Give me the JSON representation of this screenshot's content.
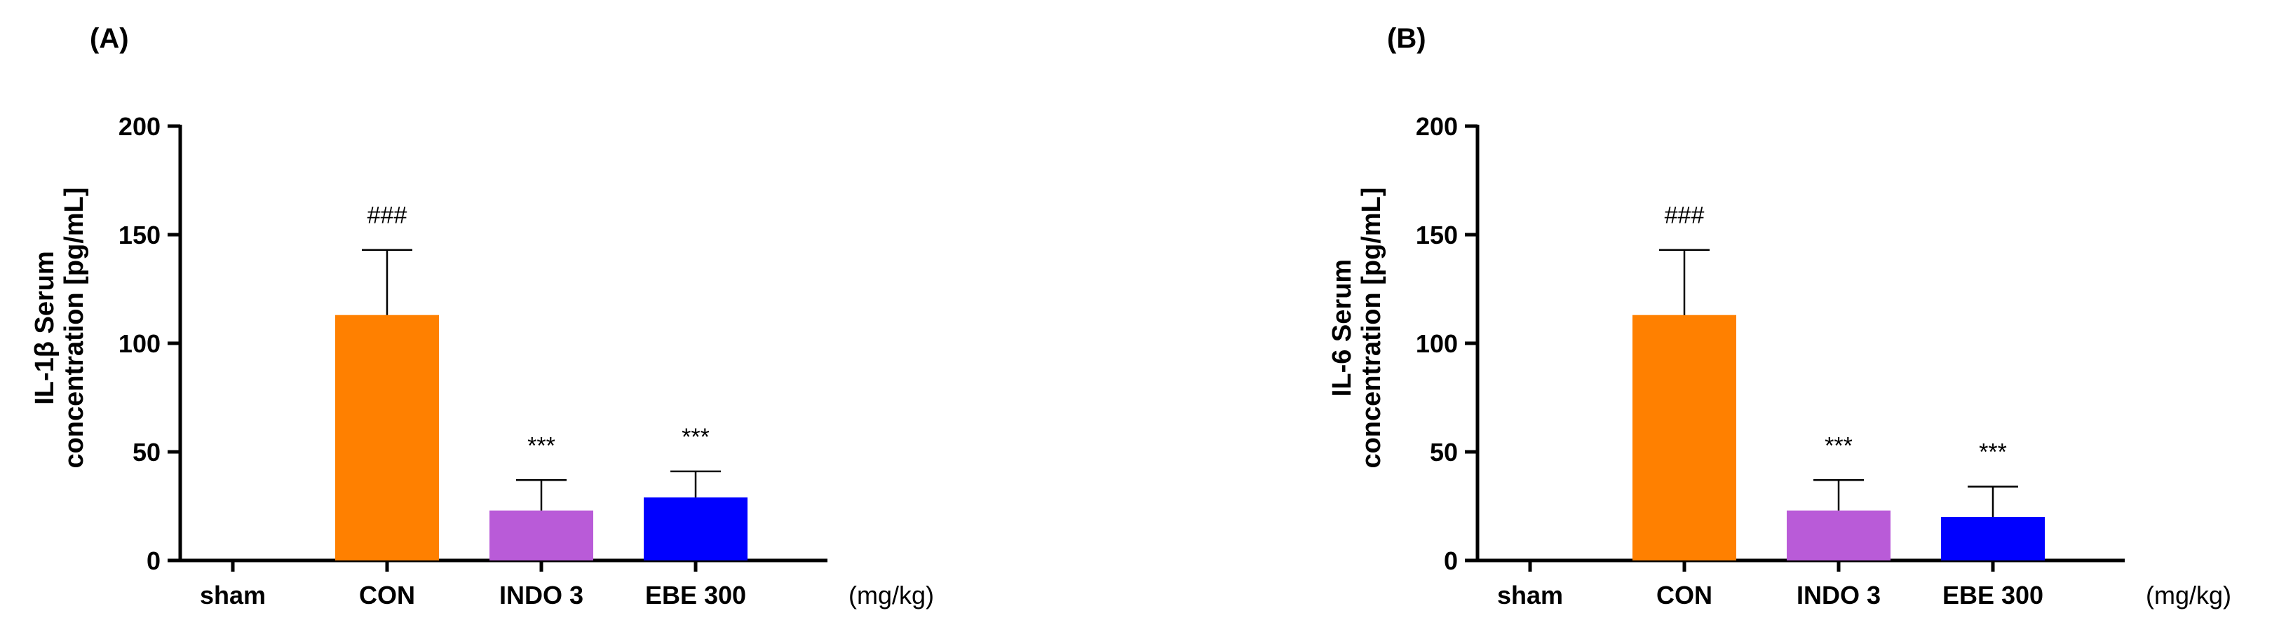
{
  "chart_data": [
    {
      "type": "bar",
      "panel_label": "(A)",
      "ylabel_line1": "IL-1β Serum",
      "ylabel_line2": "concentration [pg/mL]",
      "x_unit": "(mg/kg)",
      "categories": [
        "sham",
        "CON",
        "INDO 3",
        "EBE 300"
      ],
      "values": [
        0,
        113,
        23,
        29
      ],
      "errors": [
        0,
        30,
        14,
        12
      ],
      "annotations": [
        "",
        "###",
        "***",
        "***"
      ],
      "colors": [
        "#ffffff",
        "#ff8000",
        "#b95bd8",
        "#0000ff"
      ],
      "ylim": [
        0,
        200
      ],
      "yticks": [
        "0",
        "50",
        "100",
        "150",
        "200"
      ]
    },
    {
      "type": "bar",
      "panel_label": "(B)",
      "ylabel_line1": "IL-6 Serum",
      "ylabel_line2": "concentration [pg/mL]",
      "x_unit": "(mg/kg)",
      "categories": [
        "sham",
        "CON",
        "INDO 3",
        "EBE 300"
      ],
      "values": [
        0,
        113,
        23,
        20
      ],
      "errors": [
        0,
        30,
        14,
        14
      ],
      "annotations": [
        "",
        "###",
        "***",
        "***"
      ],
      "colors": [
        "#ffffff",
        "#ff8000",
        "#b95bd8",
        "#0000ff"
      ],
      "ylim": [
        0,
        200
      ],
      "yticks": [
        "0",
        "50",
        "100",
        "150",
        "200"
      ]
    }
  ]
}
